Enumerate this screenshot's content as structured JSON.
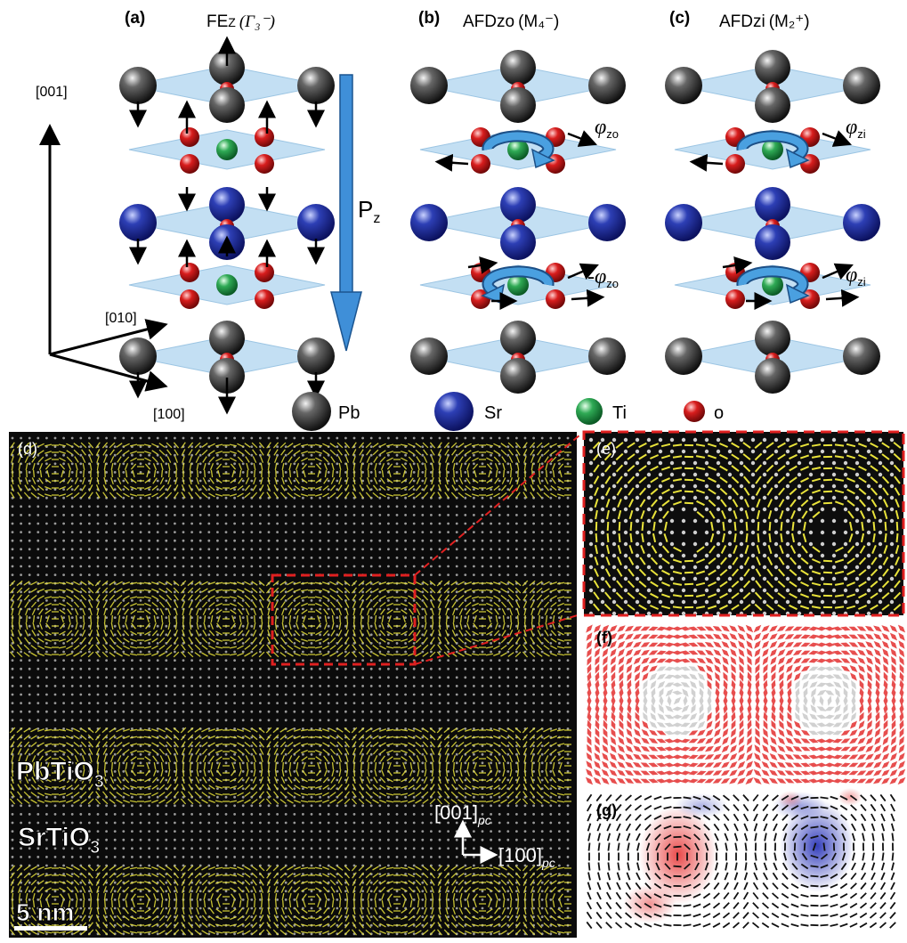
{
  "panels": {
    "a": {
      "letter": "(a)",
      "title_main": "FE",
      "title_sub": "Z",
      "title_sym": "(Γ₃⁻)"
    },
    "b": {
      "letter": "(b)",
      "title_main": "AFDzo",
      "title_sym": "(M₄⁻)",
      "phi1": "φ",
      "phi1_sub": "zo",
      "phi2": "-φ",
      "phi2_sub": "zo"
    },
    "c": {
      "letter": "(c)",
      "title_main": "AFDzi",
      "title_sym": "(M₂⁺)",
      "phi1": "φ",
      "phi1_sub": "zi",
      "phi2": "φ",
      "phi2_sub": "zi"
    },
    "d": {
      "letter": "(d)"
    },
    "e": {
      "letter": "(e)"
    },
    "f": {
      "letter": "(f)"
    },
    "g": {
      "letter": "(g)"
    }
  },
  "axes": {
    "z": "[001]",
    "y": "[010]",
    "x": "[100]"
  },
  "polarization": {
    "label": "P",
    "sub": "z"
  },
  "legend": [
    {
      "label": "Pb",
      "color": "#2a2a2a"
    },
    {
      "label": "Sr",
      "color": "#1e2f9a"
    },
    {
      "label": "Ti",
      "color": "#1f9a4a"
    },
    {
      "label": "o",
      "color": "#d01818"
    }
  ],
  "stem": {
    "layer_top": "PbTiO",
    "layer_top_sub": "3",
    "layer_bottom": "SrTiO",
    "layer_bottom_sub": "3",
    "dir_up": "[001]",
    "dir_up_sub": "pc",
    "dir_right": "[100]",
    "dir_right_sub": "pc",
    "scale": "5 nm"
  }
}
